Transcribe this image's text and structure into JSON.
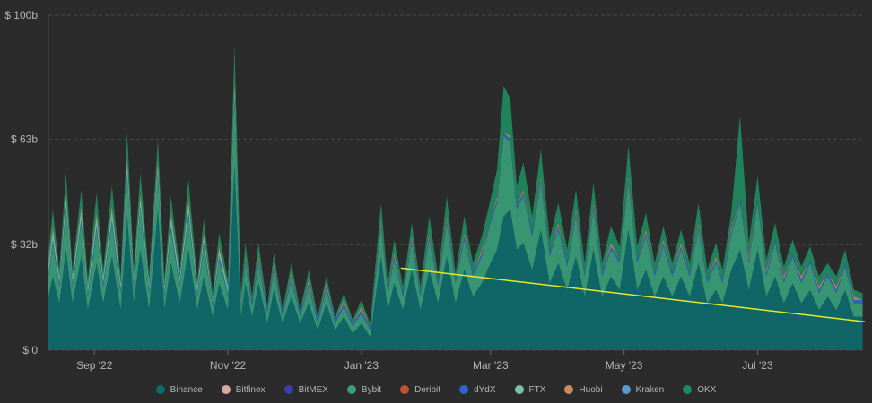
{
  "chart_data": {
    "type": "area",
    "title": "",
    "xlabel": "",
    "ylabel": "",
    "ylim": [
      0,
      100
    ],
    "y_unit": "billion USD",
    "y_ticks": [
      {
        "value": 0,
        "label": "$ 0"
      },
      {
        "value": 31.5,
        "label": "$ 32b"
      },
      {
        "value": 63,
        "label": "$ 63b"
      },
      {
        "value": 100,
        "label": "$ 100b"
      }
    ],
    "x_ticks": [
      {
        "date": "2022-09-01",
        "label": "Sep '22"
      },
      {
        "date": "2022-11-01",
        "label": "Nov '22"
      },
      {
        "date": "2023-01-01",
        "label": "Jan '23"
      },
      {
        "date": "2023-03-01",
        "label": "Mar '23"
      },
      {
        "date": "2023-05-01",
        "label": "May '23"
      },
      {
        "date": "2023-07-01",
        "label": "Jul '23"
      }
    ],
    "x_range": [
      "2022-08-11",
      "2023-08-19"
    ],
    "grid": true,
    "legend_position": "bottom-center",
    "stacked": true,
    "x": [
      "2022-08-11",
      "2022-08-13",
      "2022-08-16",
      "2022-08-19",
      "2022-08-22",
      "2022-08-26",
      "2022-08-29",
      "2022-09-02",
      "2022-09-05",
      "2022-09-09",
      "2022-09-13",
      "2022-09-16",
      "2022-09-19",
      "2022-09-22",
      "2022-09-26",
      "2022-09-30",
      "2022-10-03",
      "2022-10-06",
      "2022-10-10",
      "2022-10-14",
      "2022-10-18",
      "2022-10-21",
      "2022-10-25",
      "2022-10-28",
      "2022-11-01",
      "2022-11-04",
      "2022-11-07",
      "2022-11-09",
      "2022-11-12",
      "2022-11-15",
      "2022-11-19",
      "2022-11-22",
      "2022-11-26",
      "2022-11-30",
      "2022-12-04",
      "2022-12-08",
      "2022-12-12",
      "2022-12-16",
      "2022-12-20",
      "2022-12-24",
      "2022-12-28",
      "2023-01-01",
      "2023-01-05",
      "2023-01-10",
      "2023-01-13",
      "2023-01-16",
      "2023-01-20",
      "2023-01-24",
      "2023-01-28",
      "2023-02-01",
      "2023-02-05",
      "2023-02-09",
      "2023-02-13",
      "2023-02-17",
      "2023-02-21",
      "2023-02-25",
      "2023-03-01",
      "2023-03-04",
      "2023-03-07",
      "2023-03-10",
      "2023-03-13",
      "2023-03-16",
      "2023-03-20",
      "2023-03-24",
      "2023-03-28",
      "2023-04-01",
      "2023-04-05",
      "2023-04-09",
      "2023-04-13",
      "2023-04-17",
      "2023-04-21",
      "2023-04-25",
      "2023-04-29",
      "2023-05-03",
      "2023-05-07",
      "2023-05-11",
      "2023-05-15",
      "2023-05-19",
      "2023-05-23",
      "2023-05-27",
      "2023-05-31",
      "2023-06-04",
      "2023-06-08",
      "2023-06-12",
      "2023-06-15",
      "2023-06-19",
      "2023-06-23",
      "2023-06-27",
      "2023-07-01",
      "2023-07-05",
      "2023-07-09",
      "2023-07-13",
      "2023-07-17",
      "2023-07-21",
      "2023-07-25",
      "2023-07-29",
      "2023-08-02",
      "2023-08-06",
      "2023-08-10",
      "2023-08-14",
      "2023-08-18"
    ],
    "series": [
      {
        "name": "Binance",
        "color": "#0e6a6b",
        "values": [
          16,
          22,
          14,
          30,
          14,
          28,
          12,
          26,
          14,
          28,
          12,
          40,
          14,
          30,
          12,
          42,
          12,
          26,
          14,
          30,
          12,
          22,
          10,
          20,
          12,
          55,
          10,
          20,
          10,
          20,
          8,
          18,
          8,
          16,
          8,
          14,
          6,
          14,
          6,
          10,
          5,
          8,
          4,
          28,
          12,
          20,
          12,
          24,
          12,
          24,
          14,
          28,
          14,
          24,
          16,
          20,
          26,
          30,
          40,
          42,
          30,
          32,
          24,
          36,
          20,
          26,
          18,
          28,
          16,
          30,
          16,
          22,
          18,
          36,
          18,
          24,
          16,
          22,
          16,
          22,
          16,
          26,
          14,
          18,
          14,
          24,
          30,
          18,
          30,
          16,
          22,
          14,
          20,
          14,
          18,
          12,
          16,
          12,
          18,
          10,
          10
        ]
      },
      {
        "name": "Bitfinex",
        "color": "#d9a8a0",
        "values": [
          0,
          0,
          0,
          0,
          0,
          0,
          0,
          0,
          0,
          0,
          0,
          0,
          0,
          0,
          0,
          0,
          0,
          0,
          0,
          0,
          0,
          0,
          0,
          0,
          0,
          0,
          0,
          0,
          0,
          0,
          0,
          0,
          0,
          0,
          0,
          0,
          0,
          0,
          0,
          0,
          0,
          0,
          0,
          0,
          0,
          0,
          0,
          0,
          0,
          0,
          0,
          0,
          0,
          0,
          0,
          0,
          0,
          0,
          0,
          0,
          0,
          0,
          0,
          0,
          0,
          0,
          0,
          0,
          0,
          0,
          0,
          0,
          0,
          0,
          0,
          0,
          0,
          0,
          0,
          0,
          0,
          0,
          0,
          0,
          0,
          0,
          0,
          0,
          0,
          0,
          0,
          0,
          0,
          0,
          0,
          0,
          0,
          0,
          0,
          0,
          0
        ]
      },
      {
        "name": "BitMEX",
        "color": "#3a3fb0",
        "values": [
          0,
          0,
          0,
          0,
          0,
          0,
          0,
          0,
          0,
          0,
          0,
          0,
          0,
          0,
          0,
          0,
          0,
          0,
          0,
          0,
          0,
          0,
          0,
          0,
          0,
          0,
          0,
          0,
          0,
          0,
          0,
          0,
          0,
          0,
          0,
          0,
          0,
          0,
          0,
          0,
          0,
          0,
          0,
          0,
          0,
          0,
          0,
          0,
          0,
          0,
          0,
          0,
          0,
          0,
          0,
          0,
          0,
          0,
          0,
          0,
          0,
          0,
          0,
          0,
          0,
          0,
          0,
          0,
          0,
          0,
          0,
          0,
          0,
          0,
          0,
          0,
          0,
          0,
          0,
          0,
          0,
          0,
          0,
          0,
          0,
          0,
          0,
          0,
          0,
          0,
          0,
          0,
          0,
          0,
          0,
          0,
          0,
          0,
          0,
          0,
          0
        ]
      },
      {
        "name": "Bybit",
        "color": "#3a9e78",
        "values": [
          6,
          10,
          5,
          12,
          5,
          10,
          4,
          10,
          5,
          10,
          5,
          12,
          5,
          12,
          5,
          10,
          4,
          10,
          5,
          10,
          4,
          9,
          3,
          7,
          4,
          20,
          3,
          6,
          3,
          6,
          3,
          6,
          2,
          5,
          2,
          5,
          2,
          4,
          2,
          3,
          2,
          3,
          2,
          9,
          5,
          7,
          4,
          8,
          4,
          9,
          5,
          10,
          6,
          9,
          6,
          8,
          12,
          14,
          24,
          20,
          12,
          14,
          10,
          14,
          8,
          10,
          7,
          12,
          6,
          12,
          6,
          8,
          8,
          14,
          8,
          10,
          6,
          9,
          6,
          8,
          6,
          10,
          6,
          8,
          6,
          10,
          14,
          8,
          14,
          6,
          10,
          6,
          8,
          6,
          8,
          5,
          6,
          5,
          7,
          4,
          4
        ]
      },
      {
        "name": "Deribit",
        "color": "#c0522e",
        "values": [
          0,
          0,
          0,
          0,
          0,
          0,
          0,
          0,
          0,
          0,
          0,
          0,
          0,
          0,
          0,
          0,
          0,
          0,
          0,
          0,
          0,
          0,
          0,
          0,
          0,
          0,
          0,
          0,
          0,
          0,
          0,
          0,
          0,
          0,
          0,
          0,
          0,
          0,
          0,
          0,
          0,
          0,
          0,
          0,
          0,
          0,
          0,
          0,
          0,
          0,
          0,
          0,
          0,
          0,
          0,
          0,
          0,
          0,
          0,
          0,
          0,
          0,
          0,
          0,
          0,
          0,
          0,
          0,
          0,
          0,
          0,
          0,
          0,
          0,
          0,
          0,
          0,
          0,
          0,
          0,
          0,
          0,
          0,
          0,
          0,
          0,
          0,
          0,
          0,
          0,
          0,
          0,
          0,
          0,
          0,
          0,
          0,
          0,
          0,
          0,
          0
        ]
      },
      {
        "name": "dYdX",
        "color": "#2b67c9",
        "values": [
          1,
          1,
          1,
          1,
          1,
          1,
          1,
          1,
          1,
          1,
          1,
          1,
          1,
          1,
          1,
          1,
          1,
          1,
          1,
          1,
          1,
          1,
          1,
          1,
          1,
          1,
          1,
          1,
          1,
          1,
          1,
          1,
          1,
          1,
          1,
          1,
          1,
          1,
          1,
          1,
          1,
          1,
          1,
          1,
          1,
          1,
          1,
          1,
          1,
          1,
          1,
          1,
          1,
          1,
          1,
          1,
          1,
          1,
          1,
          1,
          1,
          1,
          1,
          1,
          1,
          1,
          1,
          1,
          1,
          1,
          1,
          1,
          1,
          1,
          1,
          1,
          1,
          1,
          1,
          1,
          1,
          1,
          1,
          1,
          1,
          1,
          1,
          1,
          1,
          1,
          1,
          1,
          1,
          1,
          1,
          1,
          1,
          1,
          1,
          1,
          1
        ]
      },
      {
        "name": "FTX",
        "color": "#79c2a8",
        "values": [
          2,
          3,
          2,
          3,
          2,
          3,
          2,
          3,
          2,
          3,
          2,
          4,
          2,
          3,
          2,
          3,
          2,
          3,
          2,
          3,
          2,
          2,
          1,
          2,
          2,
          4,
          1,
          0,
          0,
          0,
          0,
          0,
          0,
          0,
          0,
          0,
          0,
          0,
          0,
          0,
          0,
          0,
          0,
          0,
          0,
          0,
          0,
          0,
          0,
          0,
          0,
          0,
          0,
          0,
          0,
          0,
          0,
          0,
          0,
          0,
          0,
          0,
          0,
          0,
          0,
          0,
          0,
          0,
          0,
          0,
          0,
          0,
          0,
          0,
          0,
          0,
          0,
          0,
          0,
          0,
          0,
          0,
          0,
          0,
          0,
          0,
          0,
          0,
          0,
          0,
          0,
          0,
          0,
          0,
          0,
          0,
          0,
          0,
          0,
          0,
          0
        ]
      },
      {
        "name": "Huobi",
        "color": "#c98a62",
        "values": [
          1,
          1,
          0,
          1,
          0,
          1,
          0,
          1,
          0,
          1,
          0,
          1,
          0,
          1,
          0,
          1,
          0,
          1,
          0,
          1,
          0,
          1,
          0,
          1,
          0,
          1,
          0,
          1,
          0,
          1,
          0,
          1,
          0,
          1,
          0,
          1,
          0,
          1,
          0,
          1,
          0,
          1,
          0,
          1,
          0,
          1,
          0,
          1,
          0,
          1,
          0,
          1,
          0,
          1,
          0,
          1,
          0,
          1,
          0,
          1,
          0,
          1,
          0,
          1,
          0,
          1,
          0,
          1,
          0,
          1,
          0,
          1,
          0,
          1,
          0,
          1,
          0,
          1,
          0,
          1,
          0,
          1,
          0,
          1,
          0,
          1,
          0,
          1,
          0,
          1,
          0,
          1,
          0,
          1,
          0,
          1,
          0,
          1,
          0,
          1,
          0
        ]
      },
      {
        "name": "Kraken",
        "color": "#5d9ad0",
        "values": [
          0,
          0,
          0,
          0,
          0,
          0,
          0,
          0,
          0,
          0,
          0,
          0,
          0,
          0,
          0,
          0,
          0,
          0,
          0,
          0,
          0,
          0,
          0,
          0,
          0,
          0,
          0,
          0,
          0,
          0,
          0,
          0,
          0,
          0,
          0,
          0,
          0,
          0,
          0,
          0,
          0,
          0,
          0,
          0,
          0,
          0,
          0,
          0,
          0,
          0,
          0,
          0,
          0,
          0,
          0,
          0,
          0,
          0,
          0,
          0,
          0,
          0,
          0,
          0,
          0,
          0,
          0,
          0,
          0,
          0,
          0,
          0,
          0,
          0,
          0,
          0,
          0,
          0,
          0,
          0,
          0,
          0,
          0,
          0,
          0,
          0,
          0,
          0,
          0,
          0,
          0,
          0,
          0,
          0,
          0,
          0,
          0,
          0,
          0,
          0,
          0
        ]
      },
      {
        "name": "OKX",
        "color": "#1f8a5e",
        "values": [
          3,
          5,
          2,
          6,
          2,
          5,
          2,
          6,
          2,
          6,
          2,
          7,
          2,
          6,
          2,
          6,
          2,
          5,
          2,
          6,
          2,
          4,
          2,
          4,
          2,
          10,
          2,
          4,
          2,
          4,
          1,
          3,
          1,
          3,
          1,
          3,
          1,
          2,
          1,
          2,
          1,
          2,
          1,
          5,
          2,
          4,
          2,
          4,
          2,
          5,
          2,
          6,
          2,
          5,
          3,
          4,
          6,
          8,
          14,
          11,
          6,
          8,
          5,
          8,
          4,
          6,
          4,
          6,
          3,
          6,
          3,
          5,
          4,
          9,
          4,
          5,
          3,
          4,
          3,
          4,
          3,
          6,
          3,
          4,
          3,
          5,
          25,
          4,
          7,
          3,
          5,
          3,
          4,
          3,
          4,
          3,
          3,
          3,
          4,
          2,
          2
        ]
      }
    ],
    "trend_line": {
      "color": "#e8e82a",
      "points": [
        {
          "x": "2023-01-19",
          "y": 24.5
        },
        {
          "x": "2023-08-19",
          "y": 8.5
        }
      ]
    }
  }
}
